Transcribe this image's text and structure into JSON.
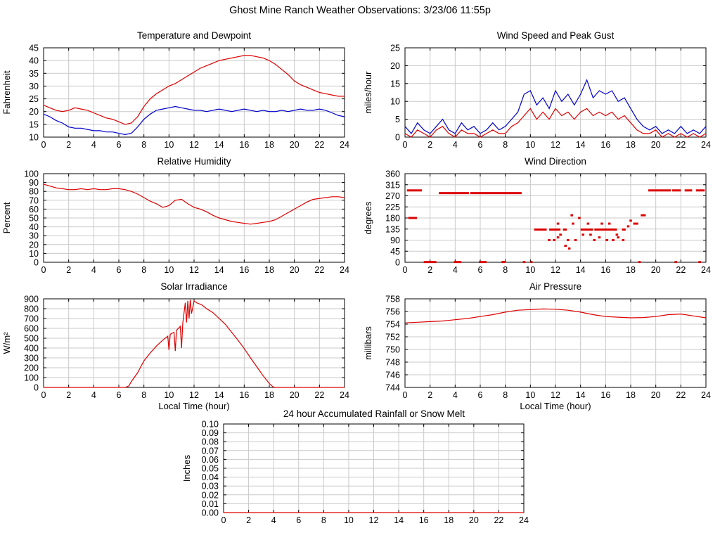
{
  "page_title": "Ghost Mine Ranch Weather Observations: 3/23/06 11:55p",
  "colors": {
    "red": "#dd0000",
    "blue": "#0000cc",
    "grid": "#c9c9c9",
    "axis": "#000000"
  },
  "chart_data": [
    {
      "id": "temperature",
      "type": "line",
      "title": "Temperature and Dewpoint",
      "ylabel": "Fahrenheit",
      "xlabel": "",
      "xlim": [
        0,
        24
      ],
      "xtick": 2,
      "ylim": [
        10,
        45
      ],
      "ytick": 5,
      "ydecimals": 0,
      "grid": true,
      "series": [
        {
          "name": "Temperature",
          "color": "#dd0000",
          "x0": 0,
          "dx": 0.5,
          "y": [
            22.5,
            21.5,
            20.5,
            20,
            20.5,
            21.5,
            21,
            20.5,
            19.5,
            18.5,
            17.5,
            17,
            16,
            15,
            15.5,
            18,
            22,
            25,
            27,
            28.5,
            30,
            31,
            32.5,
            34,
            35.5,
            37,
            38,
            39,
            40,
            40.5,
            41,
            41.5,
            42,
            42,
            41.5,
            41,
            40,
            38.5,
            36.5,
            34.5,
            32,
            30.5,
            29.5,
            28.5,
            27.5,
            27,
            26.5,
            26,
            26
          ]
        },
        {
          "name": "Dewpoint",
          "color": "#0000cc",
          "x0": 0,
          "dx": 0.5,
          "y": [
            19,
            18,
            16.5,
            15.5,
            14,
            13.5,
            13.5,
            13,
            12.5,
            12.5,
            12,
            12,
            11.5,
            11,
            11.5,
            14,
            17,
            19,
            20.5,
            21,
            21.5,
            22,
            21.5,
            21,
            20.5,
            20.5,
            20,
            20.5,
            21,
            20.5,
            20,
            20.5,
            21,
            20.5,
            20,
            20.5,
            20,
            20,
            20.5,
            20,
            20.5,
            21,
            20.5,
            20.5,
            21,
            20.5,
            19.5,
            18.5,
            18
          ]
        }
      ]
    },
    {
      "id": "windspeed",
      "type": "line",
      "title": "Wind Speed and Peak Gust",
      "ylabel": "miles/hour",
      "xlabel": "",
      "xlim": [
        0,
        24
      ],
      "xtick": 2,
      "ylim": [
        0,
        25
      ],
      "ytick": 5,
      "ydecimals": 0,
      "grid": true,
      "series": [
        {
          "name": "Peak Gust",
          "color": "#0000cc",
          "x0": 0,
          "dx": 0.5,
          "y": [
            3,
            1,
            4,
            2,
            1,
            3,
            5,
            2,
            1,
            4,
            2,
            3,
            1,
            2,
            4,
            2,
            3,
            5,
            7,
            12,
            13,
            9,
            11,
            8,
            13,
            10,
            12,
            9,
            12,
            16,
            11,
            13,
            12,
            13,
            10,
            11,
            8,
            5,
            3,
            2,
            3,
            1,
            2,
            1,
            3,
            1,
            2,
            1,
            3
          ]
        },
        {
          "name": "Wind Speed",
          "color": "#dd0000",
          "x0": 0,
          "dx": 0.5,
          "y": [
            1,
            0,
            2,
            1,
            0,
            2,
            3,
            1,
            0,
            2,
            1,
            1,
            0,
            1,
            2,
            1,
            1,
            3,
            4,
            6,
            8,
            5,
            7,
            5,
            8,
            6,
            7,
            5,
            7,
            8,
            6,
            7,
            6,
            7,
            5,
            6,
            4,
            2,
            1,
            1,
            2,
            0,
            1,
            0,
            1,
            0,
            1,
            0,
            1
          ]
        }
      ]
    },
    {
      "id": "humidity",
      "type": "line",
      "title": "Relative Humidity",
      "ylabel": "Percent",
      "xlabel": "",
      "xlim": [
        0,
        24
      ],
      "xtick": 2,
      "ylim": [
        0,
        100
      ],
      "ytick": 10,
      "ydecimals": 0,
      "grid": true,
      "series": [
        {
          "name": "Relative Humidity",
          "color": "#dd0000",
          "x0": 0,
          "dx": 0.5,
          "y": [
            88,
            86,
            84,
            83,
            82,
            82,
            83,
            82,
            83,
            82,
            82,
            83,
            83,
            82,
            80,
            77,
            73,
            69,
            66,
            62,
            64,
            70,
            71,
            66,
            62,
            60,
            57,
            53,
            50,
            48,
            46,
            45,
            44,
            43,
            44,
            45,
            46,
            48,
            52,
            56,
            60,
            64,
            68,
            71,
            72,
            73,
            74,
            74,
            73
          ]
        }
      ]
    },
    {
      "id": "winddirection",
      "type": "scatter",
      "title": "Wind Direction",
      "ylabel": "degrees",
      "xlabel": "",
      "xlim": [
        0,
        24
      ],
      "xtick": 2,
      "ylim": [
        0,
        360
      ],
      "ytick": 45,
      "ydecimals": 0,
      "grid": true,
      "series": [
        {
          "name": "Wind Direction",
          "color": "#dd0000",
          "segments": [
            [
              0.15,
              1.35,
              292
            ],
            [
              0.25,
              0.95,
              180
            ],
            [
              2.7,
              5.1,
              281
            ],
            [
              5.2,
              9.3,
              281
            ],
            [
              1.5,
              2.5,
              1
            ],
            [
              3.9,
              4.5,
              1
            ],
            [
              5.9,
              6.5,
              1
            ],
            [
              7.7,
              8.0,
              1
            ],
            [
              9.4,
              9.6,
              1
            ],
            [
              10.0,
              10.1,
              1
            ],
            [
              10.3,
              11.3,
              133
            ],
            [
              11.5,
              12.4,
              133
            ],
            [
              12.6,
              12.9,
              133
            ],
            [
              14.0,
              15.0,
              133
            ],
            [
              15.1,
              16.9,
              133
            ],
            [
              17.3,
              17.6,
              133
            ],
            [
              12.1,
              12.3,
              157
            ],
            [
              13.3,
              13.5,
              157
            ],
            [
              14.5,
              14.7,
              157
            ],
            [
              15.6,
              15.8,
              157
            ],
            [
              16.2,
              16.4,
              157
            ],
            [
              18.2,
              18.6,
              157
            ],
            [
              18.8,
              19.2,
              191
            ],
            [
              19.4,
              21.2,
              292
            ],
            [
              21.3,
              22.0,
              292
            ],
            [
              22.3,
              22.9,
              292
            ],
            [
              23.2,
              23.9,
              292
            ],
            [
              18.6,
              18.8,
              1
            ],
            [
              21.5,
              21.7,
              1
            ],
            [
              23.4,
              23.6,
              1
            ]
          ],
          "points": [
            [
              11.5,
              90
            ],
            [
              11.9,
              90
            ],
            [
              12.2,
              101
            ],
            [
              12.4,
              112
            ],
            [
              12.8,
              67
            ],
            [
              13.0,
              90
            ],
            [
              13.1,
              56
            ],
            [
              13.3,
              191
            ],
            [
              13.6,
              90
            ],
            [
              13.9,
              180
            ],
            [
              14.2,
              112
            ],
            [
              14.8,
              112
            ],
            [
              15.1,
              90
            ],
            [
              15.5,
              101
            ],
            [
              16.1,
              90
            ],
            [
              16.6,
              90
            ],
            [
              16.9,
              112
            ],
            [
              17.0,
              101
            ],
            [
              17.4,
              90
            ],
            [
              17.8,
              146
            ],
            [
              18.0,
              169
            ]
          ]
        }
      ]
    },
    {
      "id": "solar",
      "type": "line",
      "title": "Solar Irradiance",
      "ylabel": "W/m²",
      "xlabel": "Local Time (hour)",
      "xlim": [
        0,
        24
      ],
      "xtick": 2,
      "ylim": [
        0,
        900
      ],
      "ytick": 100,
      "ydecimals": 0,
      "grid": true,
      "series": [
        {
          "name": "Solar Irradiance",
          "color": "#dd0000",
          "x": [
            0,
            1,
            2,
            3,
            4,
            5,
            6,
            6.5,
            6.8,
            7,
            7.5,
            8,
            8.5,
            9,
            9.5,
            9.8,
            9.9,
            10.0,
            10.1,
            10.4,
            10.5,
            10.6,
            10.9,
            11.0,
            11.1,
            11.3,
            11.4,
            11.5,
            11.6,
            11.7,
            11.8,
            12.0,
            12.2,
            12.4,
            12.6,
            13,
            13.5,
            14,
            14.5,
            15,
            15.5,
            16,
            16.5,
            17,
            17.5,
            18,
            18.3,
            18.5,
            19,
            20,
            21,
            22,
            23,
            24
          ],
          "y": [
            0,
            0,
            0,
            0,
            0,
            0,
            0,
            0,
            15,
            60,
            150,
            270,
            350,
            420,
            480,
            510,
            520,
            380,
            540,
            560,
            370,
            580,
            620,
            400,
            650,
            860,
            660,
            880,
            700,
            890,
            750,
            880,
            860,
            850,
            840,
            800,
            760,
            700,
            640,
            560,
            480,
            395,
            300,
            210,
            120,
            40,
            5,
            0,
            0,
            0,
            0,
            0,
            0,
            0
          ]
        }
      ]
    },
    {
      "id": "pressure",
      "type": "line",
      "title": "Air Pressure",
      "ylabel": "millibars",
      "xlabel": "Local Time (hour)",
      "xlim": [
        0,
        24
      ],
      "xtick": 2,
      "ylim": [
        744,
        758
      ],
      "ytick": 2,
      "ydecimals": 0,
      "grid": true,
      "series": [
        {
          "name": "Air Pressure",
          "color": "#dd0000",
          "x0": 0,
          "dx": 1,
          "y": [
            754.2,
            754.3,
            754.4,
            754.5,
            754.7,
            754.9,
            755.2,
            755.5,
            755.9,
            756.2,
            756.3,
            756.4,
            756.35,
            756.2,
            755.9,
            755.5,
            755.2,
            755.1,
            755.0,
            755.05,
            755.2,
            755.5,
            755.6,
            755.3,
            755.0
          ]
        }
      ]
    },
    {
      "id": "rainfall",
      "type": "line",
      "title": "24 hour Accumulated Rainfall or Snow Melt",
      "ylabel": "Inches",
      "xlabel": "",
      "xlim": [
        0,
        24
      ],
      "xtick": 2,
      "ylim": [
        0,
        0.1
      ],
      "ytick": 0.01,
      "ydecimals": 2,
      "grid": true,
      "series": [
        {
          "name": "Accumulated Rainfall",
          "color": "#dd0000",
          "x": [
            0,
            24
          ],
          "y": [
            0,
            0
          ]
        }
      ]
    }
  ]
}
